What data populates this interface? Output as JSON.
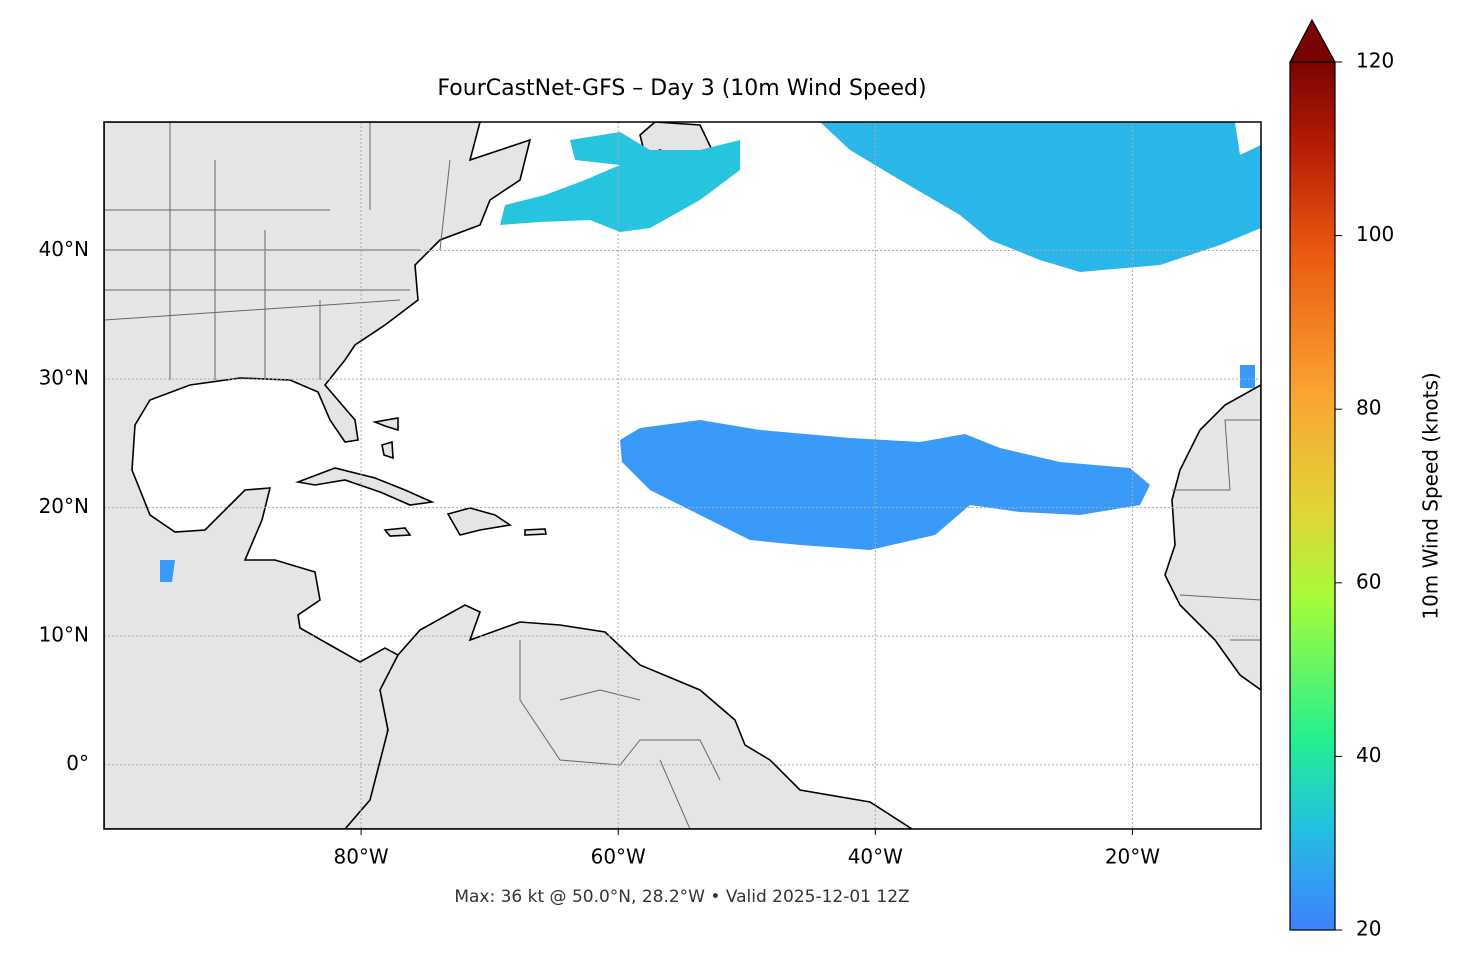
{
  "chart_data": {
    "type": "map",
    "title": "FourCastNet-GFS – Day 3 (10m Wind Speed)",
    "annotation": "Max: 36 kt @ 50.0°N, 28.2°W • Valid 2025-12-01 12Z",
    "xlim": [
      -100,
      -10
    ],
    "ylim": [
      -5,
      50
    ],
    "xticks": [
      {
        "value": -80,
        "label": "80°W"
      },
      {
        "value": -60,
        "label": "60°W"
      },
      {
        "value": -40,
        "label": "40°W"
      },
      {
        "value": -20,
        "label": "20°W"
      }
    ],
    "yticks": [
      {
        "value": 0,
        "label": "0°"
      },
      {
        "value": 10,
        "label": "10°N"
      },
      {
        "value": 20,
        "label": "20°N"
      },
      {
        "value": 30,
        "label": "30°N"
      },
      {
        "value": 40,
        "label": "40°N"
      }
    ],
    "grid": true,
    "colorbar": {
      "label": "10m Wind Speed (knots)",
      "lim": [
        20,
        120
      ],
      "ticks": [
        20,
        40,
        60,
        80,
        100,
        120
      ]
    }
  }
}
